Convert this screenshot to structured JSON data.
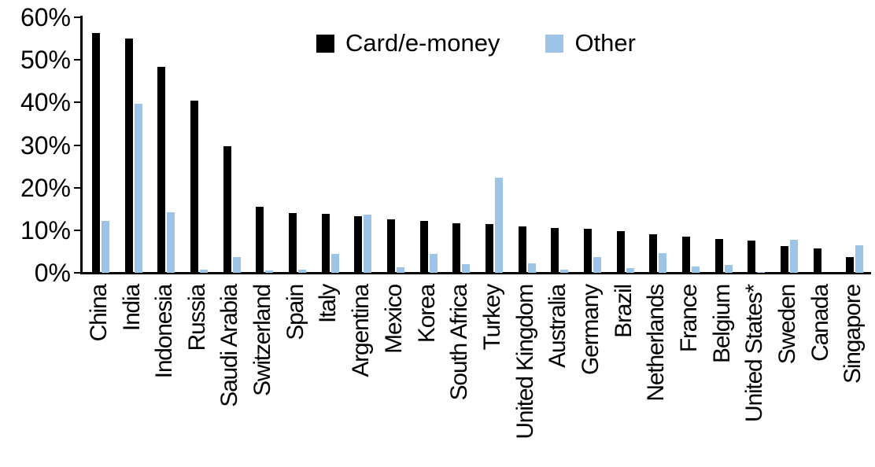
{
  "chart_data": {
    "type": "bar",
    "title": "",
    "categories": [
      "China",
      "India",
      "Indonesia",
      "Russia",
      "Saudi Arabia",
      "Switzerland",
      "Spain",
      "Italy",
      "Argentina",
      "Mexico",
      "Korea",
      "South Africa",
      "Turkey",
      "United Kingdom",
      "Australia",
      "Germany",
      "Brazil",
      "Netherlands",
      "France",
      "Belgium",
      "United States*",
      "Sweden",
      "Canada",
      "Singapore"
    ],
    "series": [
      {
        "name": "Card/e-money",
        "color": "#000000",
        "values": [
          56.3,
          55.1,
          48.3,
          40.5,
          29.8,
          15.5,
          14.1,
          13.9,
          13.2,
          12.6,
          12.1,
          11.6,
          11.5,
          10.9,
          10.6,
          10.3,
          9.8,
          9.1,
          8.4,
          8.0,
          7.6,
          6.3,
          5.7,
          3.6
        ]
      },
      {
        "name": "Other",
        "color": "#9DC3E6",
        "values": [
          12.1,
          39.6,
          14.2,
          0.7,
          3.7,
          0.6,
          0.7,
          4.4,
          13.7,
          1.2,
          4.5,
          2.1,
          22.4,
          2.2,
          0.8,
          3.6,
          1.1,
          4.6,
          1.4,
          1.9,
          0.2,
          7.8,
          0,
          6.4
        ]
      }
    ],
    "xlabel": "",
    "ylabel": "",
    "ylim": [
      0,
      60
    ],
    "ytick_step": 10,
    "yticks": [
      "0%",
      "10%",
      "20%",
      "30%",
      "40%",
      "50%",
      "60%"
    ],
    "legend_position": "top-center",
    "grid": false
  }
}
